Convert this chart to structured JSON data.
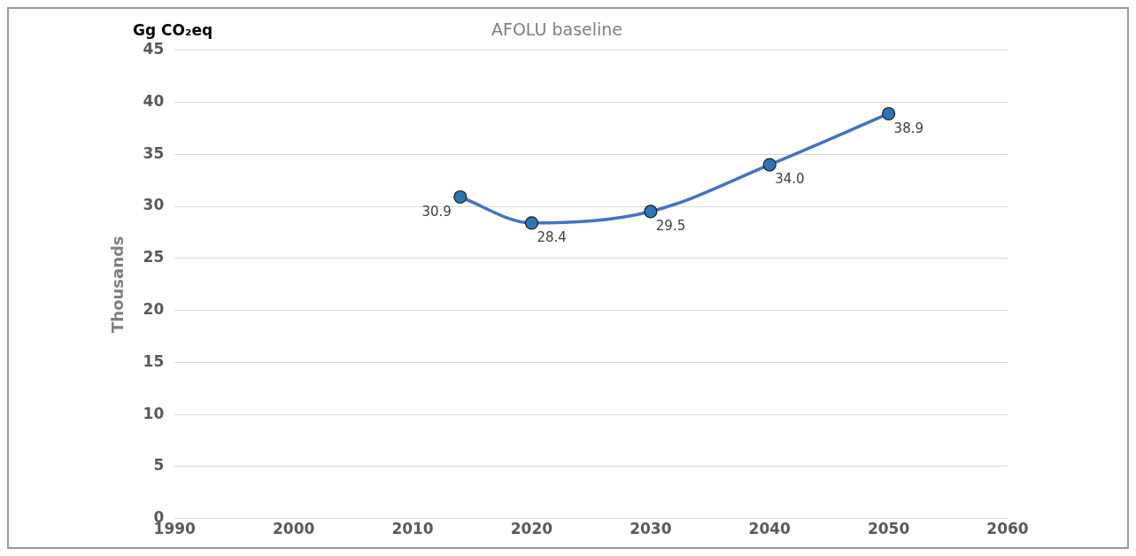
{
  "chart_data": {
    "type": "line",
    "title": "AFOLU baseline",
    "ylabel": "Thousands",
    "annotations": [
      "Gg CO₂eq"
    ],
    "x": [
      2014,
      2020,
      2030,
      2040,
      2050
    ],
    "series": [
      {
        "color": "#4472c4",
        "values": [
          30.9,
          28.4,
          29.5,
          34.0,
          38.9
        ],
        "value_labels": [
          "30.9",
          "28.4",
          "29.5",
          "34.0",
          "38.9"
        ]
      }
    ],
    "xlim": [
      1990,
      2060
    ],
    "xticks": [
      1990,
      2000,
      2010,
      2020,
      2030,
      2040,
      2050,
      2060
    ],
    "ylim": [
      0,
      45
    ],
    "yticks": [
      0,
      5,
      10,
      15,
      20,
      25,
      30,
      35,
      40,
      45
    ],
    "grid": "y",
    "marker": "circle",
    "line_style": "solid",
    "legend": false
  }
}
